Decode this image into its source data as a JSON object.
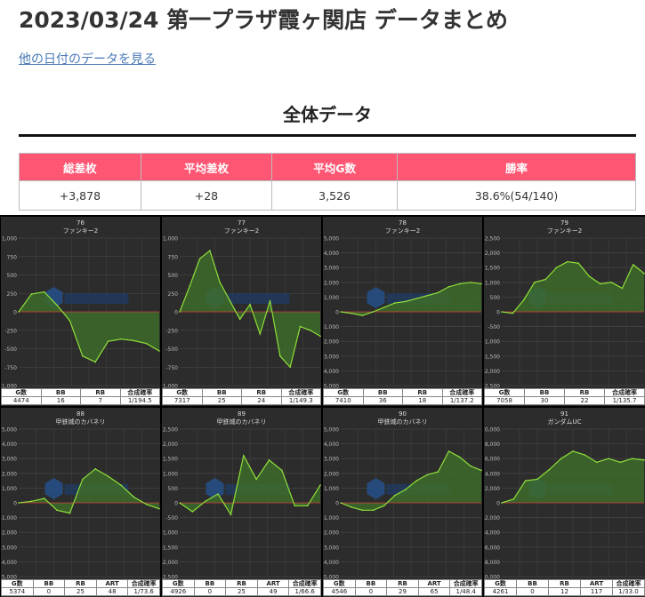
{
  "page": {
    "title": "2023/03/24 第一プラザ霞ヶ関店 データまとめ",
    "other_dates_link": "他の日付のデータを見る",
    "section_title": "全体データ"
  },
  "summary": {
    "headers": [
      "総差枚",
      "平均差枚",
      "平均G数",
      "勝率"
    ],
    "values": [
      "+3,878",
      "+28",
      "3,526",
      "38.6%(54/140)"
    ]
  },
  "colors": {
    "header_pink": "#ff5773",
    "chart_bg": "#2c2c2c",
    "line_green": "#8fe03a",
    "fill_green": "#3d6b2a",
    "zero_red": "#d33b3b"
  },
  "chart_data": [
    {
      "type": "area",
      "title": "76",
      "subtitle": "ファンキー2",
      "ylim": [
        -1000,
        1000
      ],
      "yticks": [
        1000,
        750,
        500,
        250,
        0,
        -250,
        -500,
        -750,
        -1000
      ],
      "ytick_labels": [
        "1,000",
        "750",
        "500",
        "250",
        "0",
        "-250",
        "-500",
        "-750",
        "-1,000"
      ],
      "values": [
        0,
        240,
        270,
        90,
        -120,
        -600,
        -680,
        -400,
        -370,
        -390,
        -430,
        -530
      ],
      "stats_headers": [
        "G数",
        "BB",
        "RB",
        "合成確率"
      ],
      "stats_values": [
        "4474",
        "16",
        "7",
        "1/194.5"
      ]
    },
    {
      "type": "area",
      "title": "77",
      "subtitle": "ファンキー2",
      "ylim": [
        -1000,
        1000
      ],
      "yticks": [
        1000,
        750,
        500,
        250,
        0,
        -250,
        -500,
        -750,
        -1000
      ],
      "ytick_labels": [
        "1,000",
        "750",
        "500",
        "250",
        "0",
        "-250",
        "-500",
        "-750",
        "-1,000"
      ],
      "values": [
        0,
        350,
        720,
        830,
        400,
        150,
        -100,
        100,
        -300,
        150,
        -600,
        -750,
        -200,
        -250,
        -330
      ],
      "stats_headers": [
        "G数",
        "BB",
        "RB",
        "合成確率"
      ],
      "stats_values": [
        "7317",
        "25",
        "24",
        "1/149.3"
      ]
    },
    {
      "type": "area",
      "title": "78",
      "subtitle": "ファンキー2",
      "ylim": [
        -5000,
        5000
      ],
      "yticks": [
        5000,
        4000,
        3000,
        2000,
        1000,
        0,
        -1000,
        -2000,
        -3000,
        -4000,
        -5000
      ],
      "ytick_labels": [
        "5,000",
        "4,000",
        "3,000",
        "2,000",
        "1,000",
        "0",
        "-1,000",
        "-2,000",
        "-3,000",
        "-4,000",
        "-5,000"
      ],
      "values": [
        0,
        -100,
        -250,
        0,
        300,
        600,
        700,
        900,
        1100,
        1300,
        1700,
        1900,
        2000,
        1900
      ],
      "stats_headers": [
        "G数",
        "BB",
        "RB",
        "合成確率"
      ],
      "stats_values": [
        "7410",
        "36",
        "18",
        "1/137.2"
      ]
    },
    {
      "type": "area",
      "title": "79",
      "subtitle": "ファンキー2",
      "ylim": [
        -2500,
        2500
      ],
      "yticks": [
        2500,
        2000,
        1500,
        1000,
        500,
        0,
        -500,
        -1000,
        -1500,
        -2000,
        -2500
      ],
      "ytick_labels": [
        "2,500",
        "2,000",
        "1,500",
        "1,000",
        "500",
        "0",
        "-500",
        "-1,000",
        "-1,500",
        "-2,000",
        "-2,500"
      ],
      "values": [
        0,
        -50,
        400,
        1000,
        1100,
        1500,
        1700,
        1650,
        1200,
        950,
        1000,
        800,
        1600,
        1300
      ],
      "stats_headers": [
        "G数",
        "BB",
        "RB",
        "合成確率"
      ],
      "stats_values": [
        "7058",
        "30",
        "22",
        "1/135.7"
      ]
    },
    {
      "type": "area",
      "title": "88",
      "subtitle": "甲鉄城のカバネリ",
      "ylim": [
        -5000,
        5000
      ],
      "yticks": [
        5000,
        4000,
        3000,
        2000,
        1000,
        0,
        -1000,
        -2000,
        -3000,
        -4000,
        -5000
      ],
      "ytick_labels": [
        "5,000",
        "4,000",
        "3,000",
        "2,000",
        "1,000",
        "0",
        "-1,000",
        "-2,000",
        "-3,000",
        "-4,000",
        "-5,000"
      ],
      "values": [
        0,
        100,
        300,
        -500,
        -700,
        1600,
        2300,
        1800,
        1200,
        400,
        -100,
        -400
      ],
      "stats_headers": [
        "G数",
        "BB",
        "RB",
        "ART",
        "合成確率"
      ],
      "stats_values": [
        "5374",
        "0",
        "25",
        "48",
        "1/73.6"
      ]
    },
    {
      "type": "area",
      "title": "89",
      "subtitle": "甲鉄城のカバネリ",
      "ylim": [
        -2500,
        2500
      ],
      "yticks": [
        2500,
        2000,
        1500,
        1000,
        500,
        0,
        -500,
        -1000,
        -1500,
        -2000,
        -2500
      ],
      "ytick_labels": [
        "2,500",
        "2,000",
        "1,500",
        "1,000",
        "500",
        "0",
        "-500",
        "-1,000",
        "-1,500",
        "-2,000",
        "-2,500"
      ],
      "values": [
        0,
        -300,
        50,
        300,
        -400,
        1600,
        800,
        1450,
        1100,
        -100,
        -100,
        600
      ],
      "stats_headers": [
        "G数",
        "BB",
        "RB",
        "ART",
        "合成確率"
      ],
      "stats_values": [
        "4926",
        "0",
        "25",
        "49",
        "1/66.6"
      ]
    },
    {
      "type": "area",
      "title": "90",
      "subtitle": "甲鉄城のカバネリ",
      "ylim": [
        -5000,
        5000
      ],
      "yticks": [
        5000,
        4000,
        3000,
        2000,
        1000,
        0,
        -1000,
        -2000,
        -3000,
        -4000,
        -5000
      ],
      "ytick_labels": [
        "5,000",
        "4,000",
        "3,000",
        "2,000",
        "1,000",
        "0",
        "-1,000",
        "-2,000",
        "-3,000",
        "-4,000",
        "-5,000"
      ],
      "values": [
        0,
        -300,
        -500,
        -500,
        -200,
        500,
        900,
        1500,
        1900,
        2100,
        3500,
        3100,
        2500,
        2200
      ],
      "stats_headers": [
        "G数",
        "BB",
        "RB",
        "ART",
        "合成確率"
      ],
      "stats_values": [
        "4546",
        "0",
        "29",
        "65",
        "1/48.4"
      ]
    },
    {
      "type": "area",
      "title": "91",
      "subtitle": "ガンダムUC",
      "ylim": [
        -10000,
        10000
      ],
      "yticks": [
        10000,
        8000,
        6000,
        4000,
        2000,
        0,
        -2000,
        -4000,
        -6000,
        -8000,
        -10000
      ],
      "ytick_labels": [
        "10,000",
        "8,000",
        "6,000",
        "4,000",
        "2,000",
        "0",
        "-2,000",
        "-4,000",
        "-6,000",
        "-8,000",
        "-10,000"
      ],
      "values": [
        0,
        500,
        3000,
        3200,
        4500,
        6000,
        7000,
        6500,
        5500,
        6000,
        5500,
        6000,
        5800
      ],
      "stats_headers": [
        "G数",
        "BB",
        "RB",
        "ART",
        "合成確率"
      ],
      "stats_values": [
        "4261",
        "0",
        "12",
        "117",
        "1/33.0"
      ]
    }
  ]
}
